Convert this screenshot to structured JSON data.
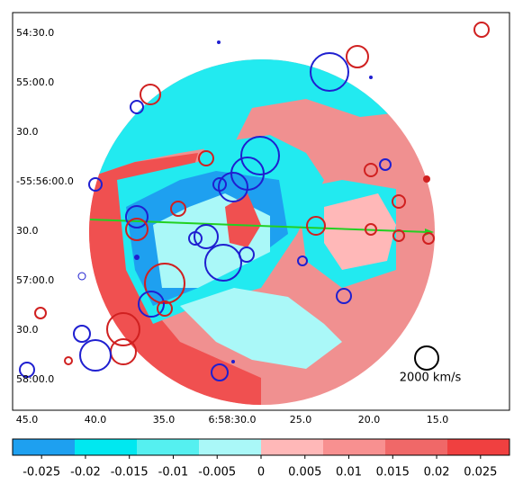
{
  "chart_data": {
    "type": "map",
    "yticklabels": [
      "54:30.0",
      "55:00.0",
      "30.0",
      "-55:56:00.0",
      "30.0",
      "57:00.0",
      "30.0",
      "58:00.0"
    ],
    "xticklabels": [
      "45.0",
      "40.0",
      "35.0",
      "6:58:30.0",
      "25.0",
      "20.0",
      "15.0"
    ],
    "scale_label": "2000 km/s",
    "colorbar": {
      "lim": [
        -0.0283,
        0.0283
      ],
      "ticks": [
        -0.025,
        -0.02,
        -0.015,
        -0.01,
        -0.005,
        0,
        0.005,
        0.01,
        0.015,
        0.02,
        0.025
      ],
      "colors": [
        "#1ea0f0",
        "#00e8f0",
        "#55f0f0",
        "#aaf8f8",
        "#ffb8b8",
        "#f89090",
        "#f06868",
        "#f04040"
      ]
    }
  }
}
